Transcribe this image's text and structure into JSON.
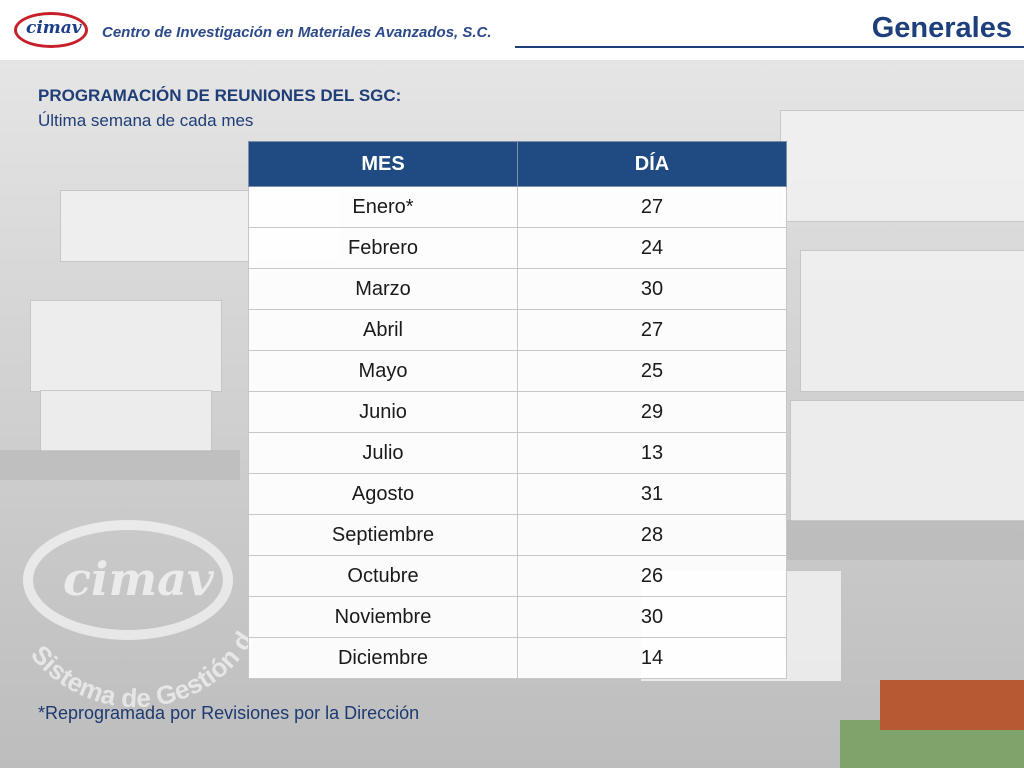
{
  "header": {
    "org_name": "Centro de Investigación en Materiales Avanzados, S.C.",
    "page_title": "Generales",
    "logo_text": "cimav"
  },
  "content": {
    "heading": "PROGRAMACIÓN DE REUNIONES DEL SGC:",
    "subheading": "Última semana de cada mes",
    "table": {
      "columns": [
        "MES",
        "DÍA"
      ],
      "rows": [
        [
          "Enero*",
          "27"
        ],
        [
          "Febrero",
          "24"
        ],
        [
          "Marzo",
          "30"
        ],
        [
          "Abril",
          "27"
        ],
        [
          "Mayo",
          "25"
        ],
        [
          "Junio",
          "29"
        ],
        [
          "Julio",
          "13"
        ],
        [
          "Agosto",
          "31"
        ],
        [
          "Septiembre",
          "28"
        ],
        [
          "Octubre",
          "26"
        ],
        [
          "Noviembre",
          "30"
        ],
        [
          "Diciembre",
          "14"
        ]
      ]
    },
    "footnote": "*Reprogramada por Revisiones por la Dirección"
  },
  "watermark": {
    "logo_text": "cimav",
    "arc_text": "Sistema de Gestión de la Calidad"
  },
  "colors": {
    "header_blue": "#1e3f7b",
    "table_header_bg": "#1f4a82",
    "logo_red": "#c8202b"
  }
}
